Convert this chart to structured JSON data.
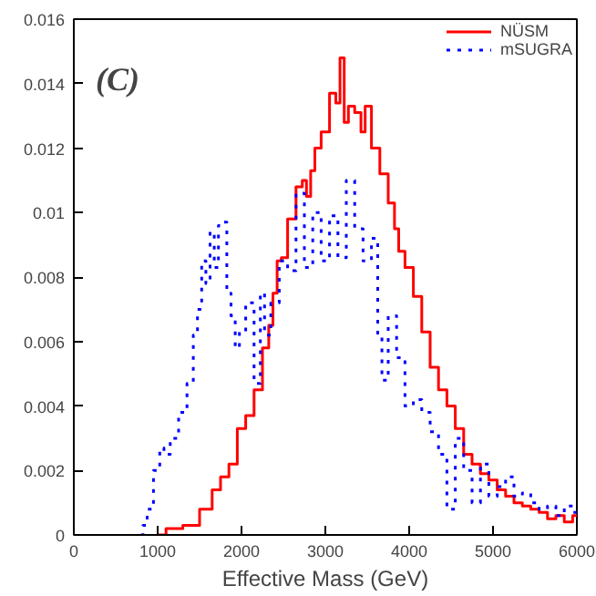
{
  "chart_data": {
    "type": "step",
    "xlabel": "Effective Mass (GeV)",
    "annotations": [
      "(C)"
    ],
    "xlim": [
      0,
      6000
    ],
    "ylim": [
      0,
      0.016
    ],
    "xticks": [
      0,
      1000,
      2000,
      3000,
      4000,
      5000,
      6000
    ],
    "yticks": [
      0,
      0.002,
      0.004,
      0.006,
      0.008,
      0.01,
      0.012,
      0.014,
      0.016
    ],
    "grid": false,
    "legend": "top right",
    "series": [
      {
        "name": "NÜSM",
        "color": "#ff0000",
        "line_style": "solid",
        "x": [
          1000,
          1200,
          1400,
          1600,
          1700,
          1800,
          1900,
          2000,
          2100,
          2200,
          2300,
          2350,
          2400,
          2450,
          2500,
          2600,
          2700,
          2750,
          2800,
          2850,
          2900,
          3000,
          3100,
          3150,
          3200,
          3250,
          3300,
          3400,
          3450,
          3500,
          3600,
          3700,
          3800,
          3850,
          3900,
          4000,
          4100,
          4200,
          4300,
          4400,
          4500,
          4600,
          4700,
          4800,
          4900,
          5000,
          5100,
          5200,
          5300,
          5400,
          5500,
          5600,
          5700,
          5800,
          5900,
          6000
        ],
        "values": [
          0,
          0.0002,
          0.0003,
          0.0008,
          0.0014,
          0.0018,
          0.0022,
          0.0033,
          0.0037,
          0.0045,
          0.0058,
          0.0065,
          0.0075,
          0.0085,
          0.0086,
          0.0098,
          0.0108,
          0.011,
          0.0105,
          0.0113,
          0.012,
          0.0125,
          0.0137,
          0.0134,
          0.0148,
          0.0128,
          0.0133,
          0.0131,
          0.0125,
          0.0133,
          0.012,
          0.0112,
          0.0103,
          0.0095,
          0.0088,
          0.0083,
          0.0074,
          0.0063,
          0.0052,
          0.0045,
          0.004,
          0.0033,
          0.0025,
          0.0022,
          0.0019,
          0.0017,
          0.0014,
          0.0012,
          0.001,
          0.0009,
          0.0008,
          0.0007,
          0.0005,
          0.0006,
          0.0004,
          0.0006
        ]
      },
      {
        "name": "mSUGRA",
        "color": "#0000ff",
        "line_style": "dotted",
        "x": [
          800,
          850,
          900,
          1000,
          1050,
          1100,
          1200,
          1300,
          1400,
          1450,
          1500,
          1550,
          1600,
          1650,
          1700,
          1750,
          1800,
          1850,
          1900,
          1950,
          2000,
          2100,
          2200,
          2250,
          2300,
          2400,
          2500,
          2600,
          2700,
          2800,
          2900,
          3000,
          3100,
          3200,
          3300,
          3400,
          3500,
          3600,
          3650,
          3700,
          3800,
          3900,
          4000,
          4100,
          4200,
          4300,
          4400,
          4500,
          4600,
          4700,
          4800,
          4900,
          5000,
          5100,
          5200,
          5300,
          5400,
          5500,
          5600,
          5700,
          5800,
          5900,
          6000
        ],
        "values": [
          0,
          0.0003,
          0.0008,
          0.002,
          0.0027,
          0.0025,
          0.003,
          0.0038,
          0.0047,
          0.0062,
          0.007,
          0.0085,
          0.0078,
          0.0094,
          0.0083,
          0.0096,
          0.0097,
          0.0075,
          0.0068,
          0.0058,
          0.0063,
          0.0072,
          0.0047,
          0.0075,
          0.0062,
          0.0072,
          0.0085,
          0.0082,
          0.0106,
          0.0083,
          0.01,
          0.0085,
          0.0099,
          0.0086,
          0.011,
          0.0095,
          0.0085,
          0.0092,
          0.0062,
          0.0048,
          0.0068,
          0.0055,
          0.004,
          0.0042,
          0.0038,
          0.0032,
          0.0025,
          0.0008,
          0.003,
          0.002,
          0.001,
          0.0022,
          0.0012,
          0.0015,
          0.0018,
          0.0012,
          0.0013,
          0.001,
          0.0008,
          0.0009,
          0.0006,
          0.0009,
          0.0007
        ]
      }
    ]
  }
}
